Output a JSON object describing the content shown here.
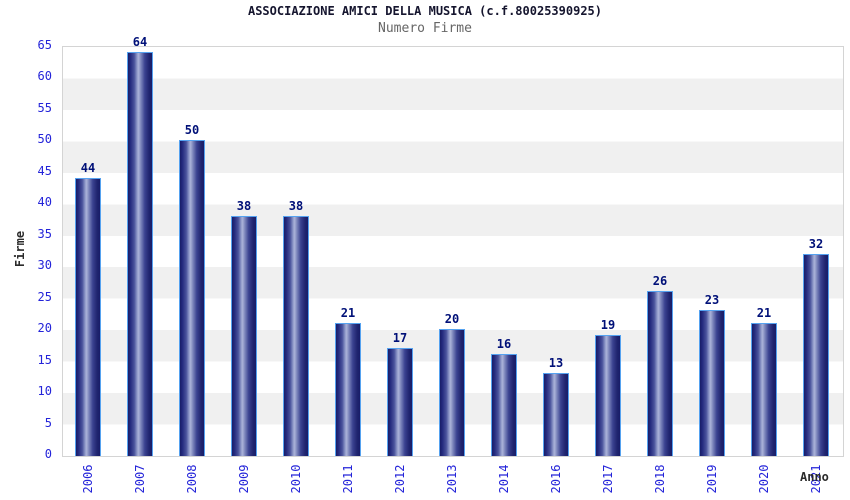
{
  "chart_data": {
    "type": "bar",
    "title": "ASSOCIAZIONE AMICI DELLA MUSICA (c.f.80025390925)",
    "subtitle": "Numero Firme",
    "xlabel": "Anno",
    "ylabel": "Firme",
    "categories": [
      "2006",
      "2007",
      "2008",
      "2009",
      "2010",
      "2011",
      "2012",
      "2013",
      "2014",
      "2016",
      "2017",
      "2018",
      "2019",
      "2020",
      "2021"
    ],
    "values": [
      44,
      64,
      50,
      38,
      38,
      21,
      17,
      20,
      16,
      13,
      19,
      26,
      23,
      21,
      32
    ],
    "ylim": [
      0,
      65
    ],
    "ytick_step": 5,
    "legend": "none",
    "grid": "alternating horizontal bands every 5 units",
    "colors": {
      "bar_dark": "#191d68",
      "bar_highlight": "#aab2d8",
      "bar_border": "#55a2f0",
      "tick_label": "#2424d9",
      "value_label": "#001078",
      "band_gray": "#f0f0f0",
      "plot_border": "#d4d4d4",
      "title_color": "#15152e",
      "subtitle_color": "#666666"
    }
  }
}
